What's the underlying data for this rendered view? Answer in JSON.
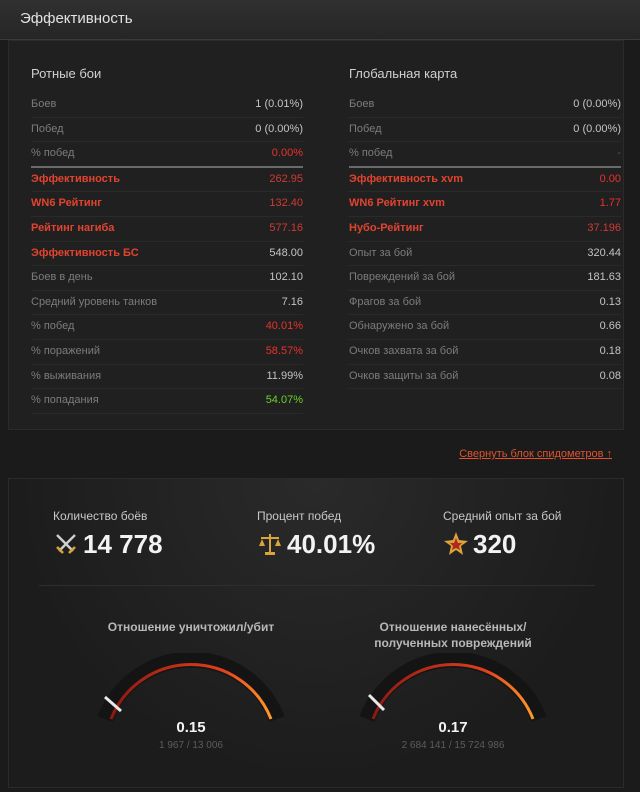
{
  "header": {
    "title": "Эффективность"
  },
  "company": {
    "title": "Ротные бои",
    "rows": [
      {
        "label": "Боев",
        "value": "1 (0.01%)",
        "label_style": "",
        "value_style": "",
        "sep": false
      },
      {
        "label": "Побед",
        "value": "0 (0.00%)",
        "label_style": "",
        "value_style": "",
        "sep": false
      },
      {
        "label": "% побед",
        "value": "0.00%",
        "label_style": "",
        "value_style": "red",
        "sep": true
      },
      {
        "label": "Эффективность",
        "value": "262.95",
        "label_style": "accent",
        "value_style": "dim-red",
        "sep": false
      },
      {
        "label": "WN6 Рейтинг",
        "value": "132.40",
        "label_style": "accent",
        "value_style": "dim-red",
        "sep": false
      },
      {
        "label": "Рейтинг нагиба",
        "value": "577.16",
        "label_style": "accent",
        "value_style": "dim-red",
        "sep": false
      },
      {
        "label": "Эффективность БС",
        "value": "548.00",
        "label_style": "accent",
        "value_style": "",
        "sep": false
      },
      {
        "label": "Боев в день",
        "value": "102.10",
        "label_style": "",
        "value_style": "",
        "sep": false
      },
      {
        "label": "Средний уровень танков",
        "value": "7.16",
        "label_style": "",
        "value_style": "",
        "sep": false
      },
      {
        "label": "% побед",
        "value": "40.01%",
        "label_style": "",
        "value_style": "red",
        "sep": false
      },
      {
        "label": "% поражений",
        "value": "58.57%",
        "label_style": "",
        "value_style": "red",
        "sep": false
      },
      {
        "label": "% выживания",
        "value": "11.99%",
        "label_style": "",
        "value_style": "",
        "sep": false
      },
      {
        "label": "% попадания",
        "value": "54.07%",
        "label_style": "",
        "value_style": "green",
        "sep": false
      }
    ]
  },
  "global": {
    "title": "Глобальная карта",
    "rows": [
      {
        "label": "Боев",
        "value": "0 (0.00%)",
        "label_style": "",
        "value_style": "",
        "sep": false
      },
      {
        "label": "Побед",
        "value": "0 (0.00%)",
        "label_style": "",
        "value_style": "",
        "sep": false
      },
      {
        "label": "% побед",
        "value": "-",
        "label_style": "",
        "value_style": "muted",
        "sep": true
      },
      {
        "label": "Эффективность xvm",
        "value": "0.00",
        "label_style": "accent",
        "value_style": "red",
        "sep": false
      },
      {
        "label": "WN6 Рейтинг xvm",
        "value": "1.77",
        "label_style": "accent",
        "value_style": "red",
        "sep": false
      },
      {
        "label": "Нубо-Рейтинг",
        "value": "37.196",
        "label_style": "accent",
        "value_style": "dim-red",
        "sep": false
      },
      {
        "label": "Опыт за бой",
        "value": "320.44",
        "label_style": "",
        "value_style": "",
        "sep": false
      },
      {
        "label": "Повреждений за бой",
        "value": "181.63",
        "label_style": "",
        "value_style": "",
        "sep": false
      },
      {
        "label": "Фрагов за бой",
        "value": "0.13",
        "label_style": "",
        "value_style": "",
        "sep": false
      },
      {
        "label": "Обнаружено за бой",
        "value": "0.66",
        "label_style": "",
        "value_style": "",
        "sep": false
      },
      {
        "label": "Очков захвата за бой",
        "value": "0.18",
        "label_style": "",
        "value_style": "",
        "sep": false
      },
      {
        "label": "Очков защиты за бой",
        "value": "0.08",
        "label_style": "",
        "value_style": "",
        "sep": false
      }
    ]
  },
  "collapse_link": "Свернуть блок спидометров ↑",
  "stats": [
    {
      "label": "Количество боёв",
      "value": "14 778",
      "icon": "crossed-swords-icon"
    },
    {
      "label": "Процент побед",
      "value": "40.01%",
      "icon": "scales-icon"
    },
    {
      "label": "Средний опыт за бой",
      "value": "320",
      "icon": "star-burst-icon"
    }
  ],
  "gauges": [
    {
      "title": "Отношение уничтожил/убит",
      "value": "0.15",
      "sub": "1 967 / 13 006",
      "level": 0.08
    },
    {
      "title": "Отношение нанесённых/полученных повреждений",
      "value": "0.17",
      "sub": "2 684 141 / 15 724 986",
      "level": 0.09
    }
  ],
  "colors": {
    "accent": "#e2432f",
    "positive": "#6bd22a",
    "negative": "#e8322c"
  }
}
